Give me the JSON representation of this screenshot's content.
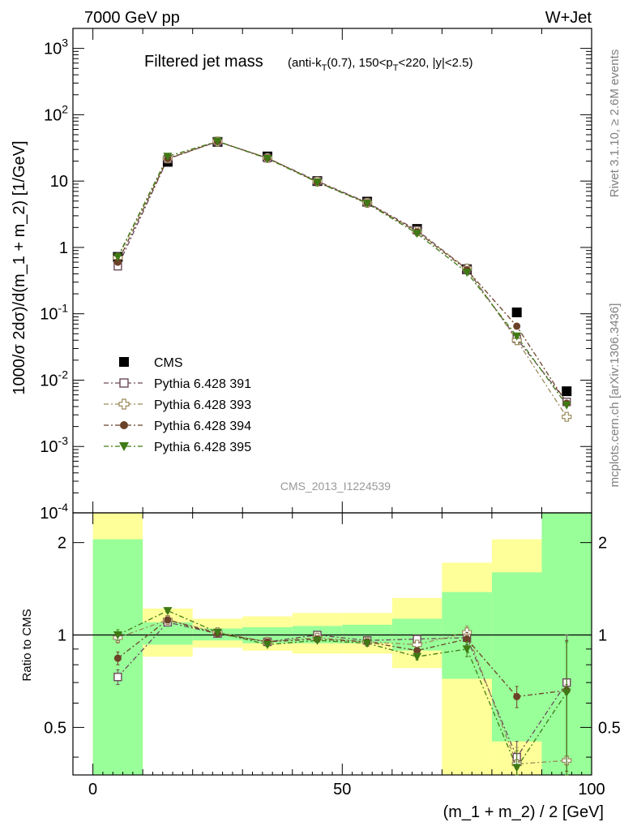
{
  "header": {
    "left": "7000 GeV pp",
    "right": "W+Jet"
  },
  "side_labels": {
    "rivet": "Rivet 3.1.10, ≥ 2.6M events",
    "mcplots": "mcplots.cern.ch [arXiv:1306.3436]"
  },
  "title": {
    "main": "Filtered jet mass",
    "sub": "(anti-k_T(0.7), 150<p_T<220, |y|<2.5)"
  },
  "analysis_label": "CMS_2013_I1224539",
  "colors": {
    "cms": "#000000",
    "p391": "#6b4a5a",
    "p393": "#9a8a5a",
    "p394": "#6b4228",
    "p395": "#3f7a14",
    "band_inner": "#99ff99",
    "band_outer": "#ffff99"
  },
  "chart_data": [
    {
      "type": "scatter",
      "ylabel": "1000/σ 2dσ)/d(m_1 + m_2) [1/GeV]",
      "yscale": "log",
      "xlim": [
        -4,
        100
      ],
      "ylim": [
        0.0001,
        2000
      ],
      "y_ticks": [
        "10^-4",
        "10^-3",
        "10^-2",
        "10^-1",
        "1",
        "10",
        "10^2",
        "10^3"
      ],
      "legend_position": "lower-left",
      "x": [
        5,
        15,
        25,
        35,
        45,
        55,
        65,
        75,
        85,
        95
      ],
      "series": [
        {
          "name": "CMS",
          "key": "cms",
          "marker": "square-filled",
          "values": [
            0.72,
            19.5,
            39.0,
            23.5,
            10.0,
            4.9,
            1.9,
            0.47,
            0.105,
            0.0068
          ]
        },
        {
          "name": "Pythia 6.428 391",
          "key": "p391",
          "marker": "square-open",
          "values": [
            0.52,
            21.5,
            39.5,
            22.2,
            10.0,
            4.75,
            1.82,
            0.47,
            0.042,
            0.0047
          ]
        },
        {
          "name": "Pythia 6.428 393",
          "key": "p393",
          "marker": "cross-open",
          "values": [
            0.7,
            22.0,
            39.5,
            22.3,
            9.8,
            4.7,
            1.75,
            0.48,
            0.04,
            0.0028
          ]
        },
        {
          "name": "Pythia 6.428 394",
          "key": "p394",
          "marker": "circle-filled",
          "values": [
            0.6,
            21.8,
            39.5,
            22.3,
            9.7,
            4.7,
            1.72,
            0.46,
            0.065,
            0.0045
          ]
        },
        {
          "name": "Pythia 6.428 395",
          "key": "p395",
          "marker": "triangle-down-filled",
          "values": [
            0.72,
            23.5,
            39.8,
            21.8,
            9.6,
            4.6,
            1.62,
            0.42,
            0.046,
            0.0042
          ]
        }
      ]
    },
    {
      "type": "scatter",
      "ylabel": "Ratio to CMS",
      "xlabel": "(m_1 + m_2) / 2 [GeV]",
      "yscale": "log",
      "xlim": [
        -4,
        100
      ],
      "ylim": [
        0.35,
        2.5
      ],
      "x_ticks": [
        0,
        50,
        100
      ],
      "y_ticks": [
        0.5,
        1,
        2
      ],
      "reference_line": 1,
      "x": [
        5,
        15,
        25,
        35,
        45,
        55,
        65,
        75,
        85,
        95
      ],
      "bands": {
        "bin_edges": [
          0,
          10,
          20,
          30,
          40,
          50,
          60,
          70,
          80,
          90,
          100
        ],
        "inner_low": [
          0.3,
          0.93,
          0.96,
          0.94,
          0.94,
          0.94,
          0.89,
          0.72,
          0.45,
          0.3
        ],
        "inner_high": [
          2.05,
          1.1,
          1.05,
          1.06,
          1.07,
          1.08,
          1.13,
          1.38,
          1.6,
          2.6
        ],
        "outer_low": [
          0.3,
          0.85,
          0.91,
          0.89,
          0.87,
          0.87,
          0.78,
          0.3,
          0.3,
          0.3
        ],
        "outer_high": [
          2.6,
          1.22,
          1.13,
          1.15,
          1.18,
          1.18,
          1.32,
          1.72,
          2.05,
          2.6
        ]
      },
      "series": [
        {
          "name": "Pythia 6.428 391",
          "key": "p391",
          "marker": "square-open",
          "values": [
            0.73,
            1.1,
            1.01,
            0.95,
            1.0,
            0.96,
            0.97,
            0.98,
            0.4,
            0.7
          ],
          "errors": [
            0.04,
            0.02,
            0.01,
            0.01,
            0.01,
            0.01,
            0.02,
            0.05,
            0.05,
            0.3
          ]
        },
        {
          "name": "Pythia 6.428 393",
          "key": "p393",
          "marker": "cross-open",
          "values": [
            0.98,
            1.12,
            1.02,
            0.95,
            0.98,
            0.95,
            0.93,
            1.02,
            0.38,
            0.39
          ],
          "errors": [
            0.04,
            0.02,
            0.01,
            0.01,
            0.01,
            0.01,
            0.02,
            0.05,
            0.05,
            0.3
          ]
        },
        {
          "name": "Pythia 6.428 394",
          "key": "p394",
          "marker": "circle-filled",
          "values": [
            0.84,
            1.12,
            1.01,
            0.95,
            0.97,
            0.95,
            0.89,
            0.97,
            0.63,
            0.66
          ],
          "errors": [
            0.04,
            0.02,
            0.01,
            0.01,
            0.01,
            0.01,
            0.02,
            0.05,
            0.05,
            0.3
          ]
        },
        {
          "name": "Pythia 6.428 395",
          "key": "p395",
          "marker": "triangle-down-filled",
          "values": [
            1.0,
            1.2,
            1.02,
            0.93,
            0.96,
            0.94,
            0.85,
            0.9,
            0.37,
            0.65
          ],
          "errors": [
            0.04,
            0.02,
            0.01,
            0.01,
            0.01,
            0.01,
            0.02,
            0.05,
            0.05,
            0.3
          ]
        }
      ]
    }
  ]
}
